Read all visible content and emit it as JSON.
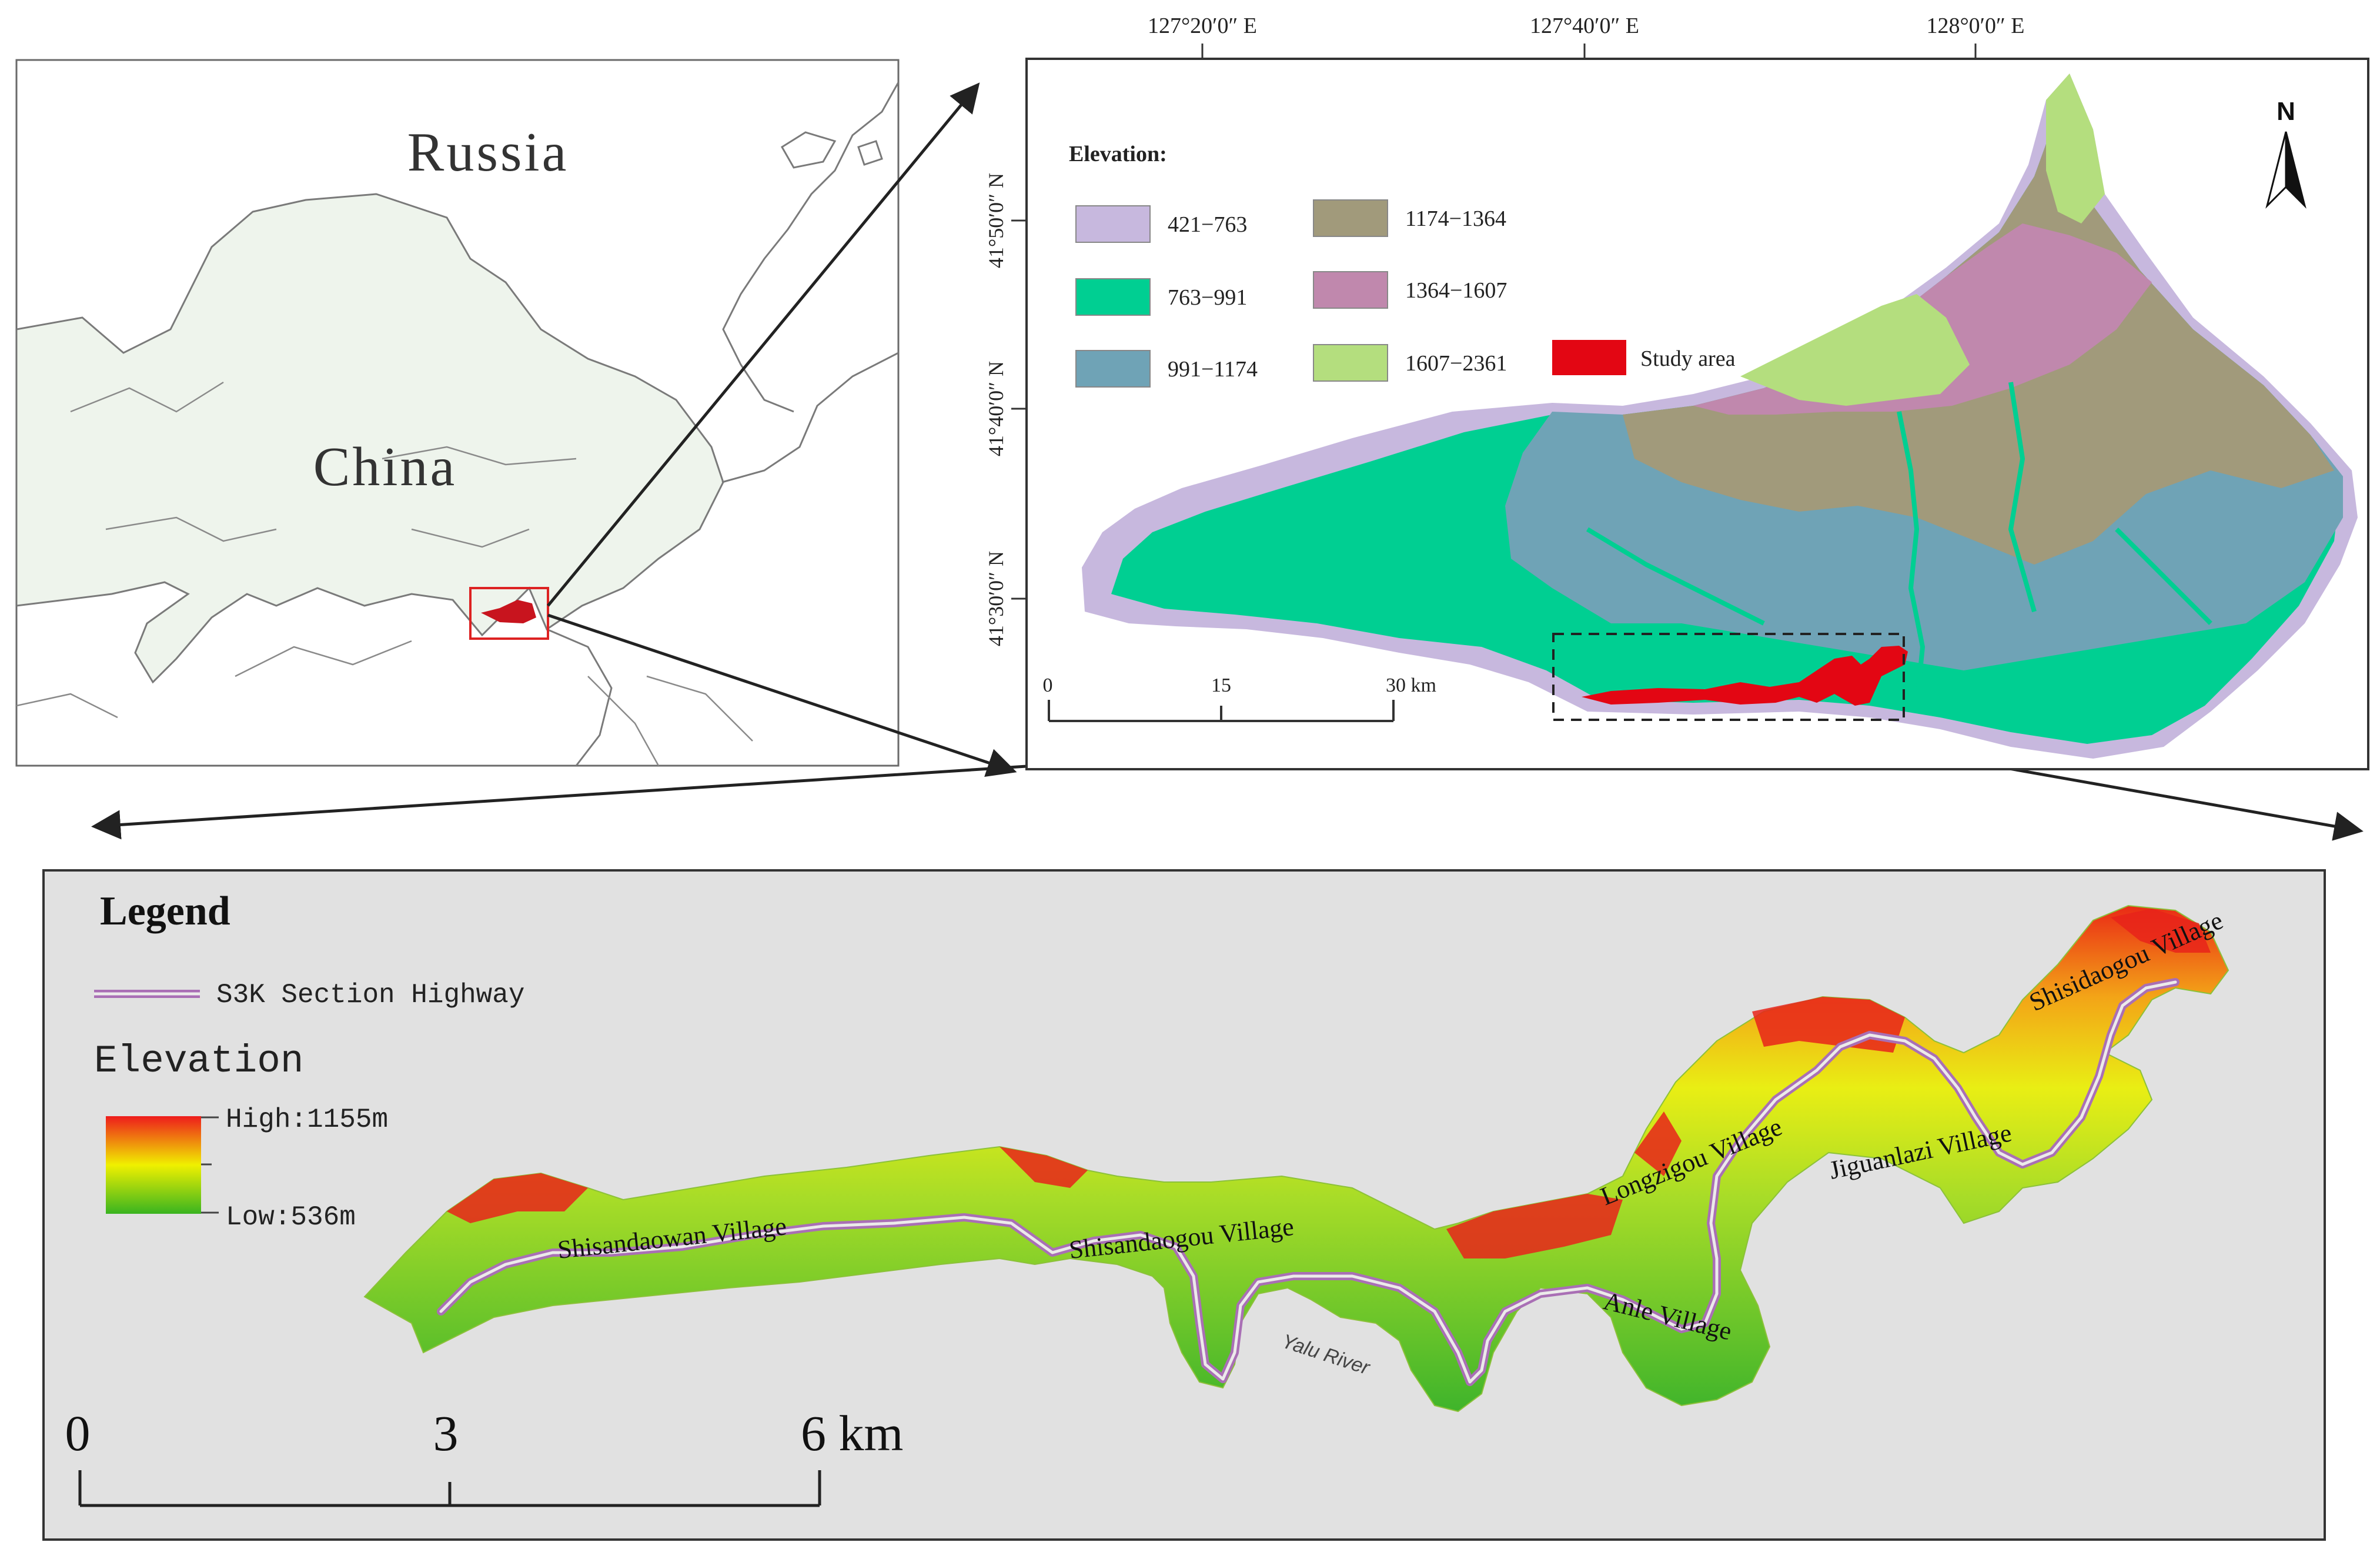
{
  "overview": {
    "countries": [
      "Russia",
      "China"
    ]
  },
  "regional": {
    "lon_ticks": [
      "127°20′0″ E",
      "127°40′0″ E",
      "128°0′0″ E"
    ],
    "lat_ticks": [
      "41°50′0″ N",
      "41°40′0″ N",
      "41°30′0″ N"
    ],
    "north_label": "N",
    "legend_title": "Elevation:",
    "classes": [
      {
        "label": "421−763",
        "color": "#c7b8de"
      },
      {
        "label": "763−991",
        "color": "#00cf92"
      },
      {
        "label": "991−1174",
        "color": "#6fa3b6"
      },
      {
        "label": "1174−1364",
        "color": "#a19a7b"
      },
      {
        "label": "1364−1607",
        "color": "#c088ad"
      },
      {
        "label": "1607−2361",
        "color": "#b4de7e"
      }
    ],
    "study_area_label": "Study area",
    "study_area_color": "#e30613",
    "scale_ticks": [
      "0",
      "15",
      "30 km"
    ]
  },
  "detail": {
    "legend_title": "Legend",
    "highway_label": "S3K Section Highway",
    "elevation_title": "Elevation",
    "high_label": "High:1155m",
    "low_label": "Low:536m",
    "villages": [
      "Shisandaowan Village",
      "Shisandaogou Village",
      "Longzigou Village",
      "Anle Village",
      "Jiguanlazi Village",
      "Shisidaogou Village"
    ],
    "river_label": "Yalu River",
    "scale_ticks": [
      "0",
      "3",
      "6 km"
    ],
    "ramp_colors": [
      "#ee1c1c",
      "#f0f000",
      "#39b420"
    ]
  }
}
